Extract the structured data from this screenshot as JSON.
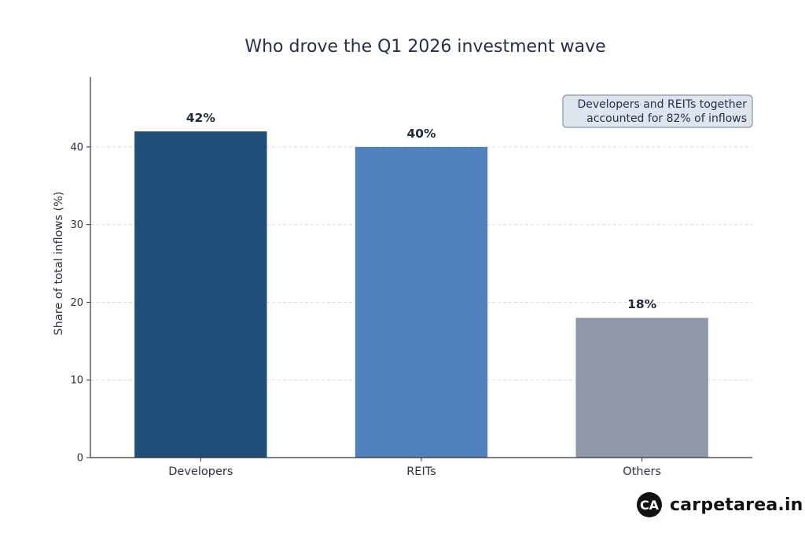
{
  "chart_data": {
    "type": "bar",
    "title": "Who drove the Q1 2026 investment wave",
    "xlabel": "",
    "ylabel": "Share of total inflows (%)",
    "categories": [
      "Developers",
      "REITs",
      "Others"
    ],
    "values": [
      42,
      40,
      18
    ],
    "data_labels": [
      "42%",
      "40%",
      "18%"
    ],
    "colors": [
      "#1f4e79",
      "#4f81bd",
      "#8e98a8"
    ],
    "ylim": [
      0,
      49
    ],
    "yticks": [
      0,
      10,
      20,
      30,
      40
    ],
    "grid": "horizontal dashed",
    "annotation": [
      "Developers and REITs together",
      "accounted for 82% of inflows"
    ],
    "annotation_position": "top-right"
  },
  "brand": {
    "logo_icon": "carpetarea-logo-icon",
    "name": "carpetarea.in"
  }
}
